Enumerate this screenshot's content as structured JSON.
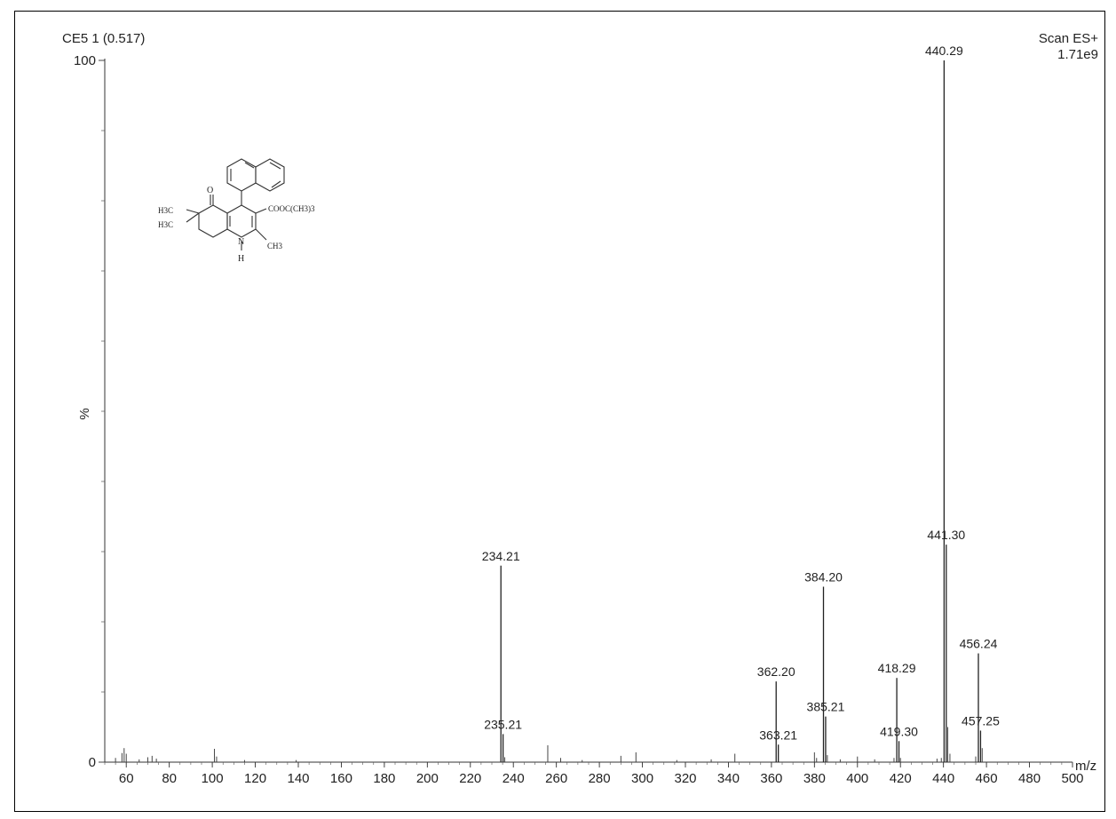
{
  "header": {
    "sample": "CE5 1 (0.517)",
    "scan_type": "Scan ES+",
    "base_intensity": "1.71e9"
  },
  "structure": {
    "labels": {
      "ketone_o": "O",
      "gem_dimethyl_1": "H3C",
      "gem_dimethyl_2": "H3C",
      "ester": "COOC(CH3)3",
      "methyl": "CH3",
      "nitrogen": "N",
      "nh_hydrogen": "H"
    }
  },
  "chart_data": {
    "type": "bar",
    "xlabel": "m/z",
    "ylabel": "%",
    "xlim": [
      50,
      500
    ],
    "ylim": [
      0,
      100
    ],
    "x_ticks": [
      60,
      80,
      100,
      120,
      140,
      160,
      180,
      200,
      220,
      240,
      260,
      280,
      300,
      320,
      340,
      360,
      380,
      400,
      420,
      440,
      460,
      480,
      500
    ],
    "y_ticks": [
      0,
      100
    ],
    "labeled_peaks": [
      {
        "mz": 440.29,
        "intensity": 100,
        "label": "440.29"
      },
      {
        "mz": 441.3,
        "intensity": 31,
        "label": "441.30"
      },
      {
        "mz": 234.21,
        "intensity": 28,
        "label": "234.21"
      },
      {
        "mz": 384.2,
        "intensity": 25,
        "label": "384.20"
      },
      {
        "mz": 456.24,
        "intensity": 15.5,
        "label": "456.24"
      },
      {
        "mz": 418.29,
        "intensity": 12,
        "label": "418.29"
      },
      {
        "mz": 362.2,
        "intensity": 11.5,
        "label": "362.20"
      },
      {
        "mz": 385.21,
        "intensity": 6.5,
        "label": "385.21"
      },
      {
        "mz": 457.25,
        "intensity": 4.5,
        "label": "457.25"
      },
      {
        "mz": 235.21,
        "intensity": 4,
        "label": "235.21"
      },
      {
        "mz": 419.3,
        "intensity": 3,
        "label": "419.30"
      },
      {
        "mz": 363.21,
        "intensity": 2.5,
        "label": "363.21"
      }
    ],
    "minor_peaks": [
      {
        "mz": 55,
        "intensity": 0.6
      },
      {
        "mz": 58,
        "intensity": 1.3
      },
      {
        "mz": 59,
        "intensity": 2
      },
      {
        "mz": 60,
        "intensity": 1.2
      },
      {
        "mz": 66,
        "intensity": 0.4
      },
      {
        "mz": 70,
        "intensity": 0.7
      },
      {
        "mz": 72,
        "intensity": 0.9
      },
      {
        "mz": 74,
        "intensity": 0.5
      },
      {
        "mz": 101,
        "intensity": 1.9
      },
      {
        "mz": 102,
        "intensity": 0.8
      },
      {
        "mz": 115,
        "intensity": 0.3
      },
      {
        "mz": 139,
        "intensity": 0.3
      },
      {
        "mz": 236,
        "intensity": 0.7
      },
      {
        "mz": 256,
        "intensity": 2.4
      },
      {
        "mz": 262,
        "intensity": 0.6
      },
      {
        "mz": 272,
        "intensity": 0.3
      },
      {
        "mz": 290,
        "intensity": 0.9
      },
      {
        "mz": 297,
        "intensity": 1.4
      },
      {
        "mz": 316,
        "intensity": 0.3
      },
      {
        "mz": 332,
        "intensity": 0.4
      },
      {
        "mz": 343,
        "intensity": 1.2
      },
      {
        "mz": 380,
        "intensity": 1.4
      },
      {
        "mz": 381,
        "intensity": 0.6
      },
      {
        "mz": 386,
        "intensity": 1
      },
      {
        "mz": 392,
        "intensity": 0.4
      },
      {
        "mz": 400,
        "intensity": 0.8
      },
      {
        "mz": 408,
        "intensity": 0.4
      },
      {
        "mz": 417,
        "intensity": 0.6
      },
      {
        "mz": 420,
        "intensity": 0.6
      },
      {
        "mz": 437,
        "intensity": 0.5
      },
      {
        "mz": 439,
        "intensity": 0.6
      },
      {
        "mz": 442,
        "intensity": 5
      },
      {
        "mz": 443,
        "intensity": 1.2
      },
      {
        "mz": 455,
        "intensity": 0.8
      },
      {
        "mz": 458,
        "intensity": 2
      }
    ]
  }
}
